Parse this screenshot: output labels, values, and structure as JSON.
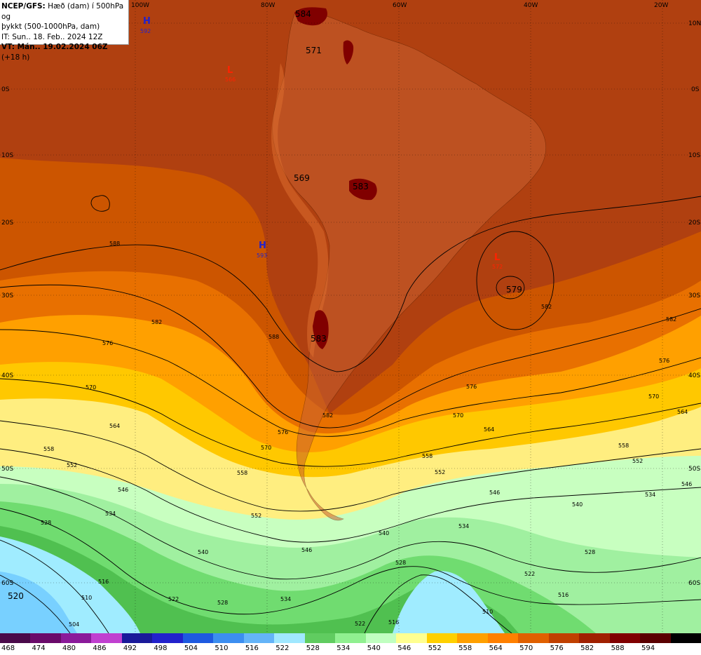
{
  "info": {
    "line1_bold": "NCEP/GFS:",
    "line1_rest": " Hæð (dam) í 500hPa og",
    "line2": "þykkt (500-1000hPa, dam)",
    "line3": "IT: Sun.. 18. Feb.. 2024 12Z",
    "line4_bold": "VT: Mán.. 19.02.2024 06Z",
    "line4_rest": " (+18 h)"
  },
  "longitudes": [
    "100W",
    "80W",
    "60W",
    "40W",
    "20W"
  ],
  "latitudes_right": [
    "10N",
    "0S",
    "10S",
    "20S",
    "30S",
    "40S",
    "50S",
    "60S"
  ],
  "latitudes_left": [
    "0S",
    "10S",
    "20S",
    "30S",
    "40S",
    "50S",
    "60S"
  ],
  "pressure_centers": [
    {
      "type": "H",
      "value": "592",
      "color": "#2222cc"
    },
    {
      "type": "L",
      "value": "566",
      "color": "#ff2200"
    },
    {
      "type": "H",
      "value": "593",
      "color": "#2222cc"
    },
    {
      "type": "L",
      "value": "572",
      "color": "#ff2200"
    }
  ],
  "big_labels": [
    "584",
    "571",
    "569",
    "583",
    "583",
    "579",
    "520"
  ],
  "contour_labels": [
    "588",
    "582",
    "576",
    "570",
    "564",
    "558",
    "552",
    "546",
    "540",
    "534",
    "528",
    "522",
    "516",
    "510",
    "504"
  ],
  "legend": {
    "values": [
      "468",
      "474",
      "480",
      "486",
      "492",
      "498",
      "504",
      "510",
      "516",
      "522",
      "528",
      "534",
      "540",
      "546",
      "552",
      "558",
      "564",
      "570",
      "576",
      "582",
      "588",
      "594"
    ],
    "colors": [
      "#4a0a4a",
      "#6a0a6a",
      "#8a1a9a",
      "#c040d0",
      "#1a1a9a",
      "#2222cc",
      "#1e5ae0",
      "#3c8ef0",
      "#64b4f8",
      "#a0e8ff",
      "#60cc60",
      "#90f090",
      "#c0ffc0",
      "#ffff90",
      "#ffd000",
      "#ffa000",
      "#ff8000",
      "#e06000",
      "#c04000",
      "#a02000",
      "#800000",
      "#5a0000",
      "#000000"
    ]
  },
  "colors": {
    "field_582_588": "#b04010",
    "field_576_582": "#cc5500",
    "field_570_576": "#e87000",
    "field_564_570": "#ffa000",
    "field_558_564": "#ffc800",
    "field_552_558": "#ffee80",
    "field_546_552": "#c8ffc0",
    "field_540_546": "#a0f0a0",
    "field_534_540": "#70dc70",
    "field_528_534": "#50c050",
    "field_522_528": "#a0ecff",
    "field_516_522": "#78d0ff",
    "land_highlands": "#c86030",
    "land_high": "#800000"
  }
}
